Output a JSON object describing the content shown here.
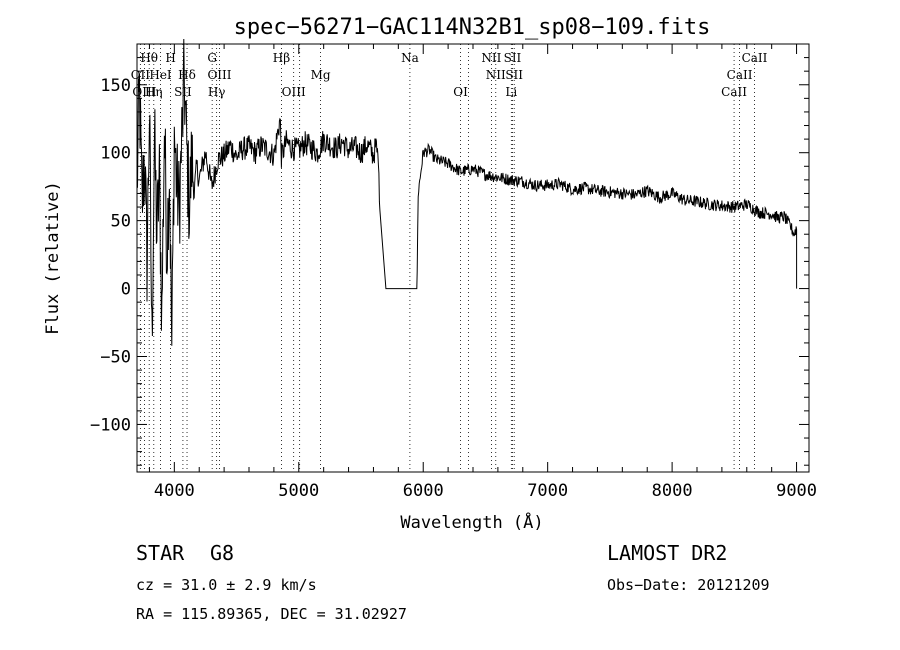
{
  "chart_data": {
    "type": "line",
    "title": "spec−56271−GAC114N32B1_sp08−109.fits",
    "xlabel": "Wavelength (Å)",
    "ylabel": "Flux (relative)",
    "xlim": [
      3700,
      9100
    ],
    "ylim": [
      -135,
      180
    ],
    "xticks": [
      {
        "value": 4000,
        "label": "4000"
      },
      {
        "value": 5000,
        "label": "5000"
      },
      {
        "value": 6000,
        "label": "6000"
      },
      {
        "value": 7000,
        "label": "7000"
      },
      {
        "value": 8000,
        "label": "8000"
      },
      {
        "value": 9000,
        "label": "9000"
      }
    ],
    "yticks": [
      {
        "value": -100,
        "label": "−100"
      },
      {
        "value": -50,
        "label": "−50"
      },
      {
        "value": 0,
        "label": "0"
      },
      {
        "value": 50,
        "label": "50"
      },
      {
        "value": 100,
        "label": "100"
      },
      {
        "value": 150,
        "label": "150"
      }
    ],
    "grid": false,
    "line_color": "#000000",
    "series": [
      {
        "x": [
          3700,
          3720,
          3740,
          3760,
          3780,
          3800,
          3820,
          3840,
          3860,
          3880,
          3900,
          3920,
          3940,
          3960,
          3980,
          4000,
          4020,
          4040,
          4060,
          4080,
          4100,
          4120,
          4140,
          4160,
          4180,
          4200,
          4250,
          4300,
          4350,
          4400,
          4450,
          4500,
          4550,
          4600,
          4650,
          4700,
          4750,
          4800,
          4850,
          4860,
          4900,
          4950,
          5000,
          5050,
          5100,
          5150,
          5200,
          5250,
          5300,
          5350,
          5400,
          5450,
          5500,
          5550,
          5600,
          5620,
          5640,
          5650,
          5700,
          5800,
          5900,
          5950,
          5960,
          6000,
          6050,
          6100,
          6200,
          6300,
          6400,
          6500,
          6600,
          6700,
          6800,
          6900,
          7000,
          7100,
          7200,
          7300,
          7400,
          7500,
          7600,
          7700,
          7800,
          7900,
          8000,
          8100,
          8200,
          8300,
          8400,
          8500,
          8600,
          8700,
          8800,
          8850,
          8900,
          8950,
          8980,
          9000
        ],
        "y": [
          75,
          145,
          60,
          100,
          20,
          130,
          -40,
          110,
          40,
          80,
          -20,
          120,
          30,
          90,
          -45,
          115,
          75,
          60,
          110,
          155,
          100,
          60,
          95,
          70,
          90,
          80,
          100,
          75,
          95,
          98,
          105,
          97,
          103,
          104,
          100,
          105,
          102,
          98,
          125,
          97,
          108,
          103,
          102,
          107,
          104,
          100,
          110,
          106,
          103,
          108,
          102,
          104,
          100,
          106,
          98,
          105,
          95,
          60,
          0,
          0,
          0,
          0,
          70,
          100,
          102,
          95,
          92,
          86,
          88,
          84,
          82,
          80,
          79,
          76,
          76,
          77,
          73,
          74,
          72,
          71,
          70,
          69,
          72,
          67,
          70,
          65,
          64,
          62,
          61,
          60,
          62,
          56,
          55,
          52,
          53,
          46,
          40,
          45
        ]
      }
    ],
    "annotations": [
      {
        "label": "Hθ",
        "x": 3798,
        "row": 1
      },
      {
        "label": "H",
        "x": 3970,
        "row": 1
      },
      {
        "label": "G",
        "x": 4304,
        "row": 1
      },
      {
        "label": "Hβ",
        "x": 4861,
        "row": 1
      },
      {
        "label": "Na",
        "x": 5893,
        "row": 1
      },
      {
        "label": "NII",
        "x": 6548,
        "row": 1
      },
      {
        "label": "SII",
        "x": 6717,
        "row": 1
      },
      {
        "label": "CaII",
        "x": 8662,
        "row": 1
      },
      {
        "label": "OII",
        "x": 3727,
        "row": 2
      },
      {
        "label": "HeI",
        "x": 3889,
        "row": 2
      },
      {
        "label": "Hδ",
        "x": 4102,
        "row": 2
      },
      {
        "label": "OIII",
        "x": 4363,
        "row": 2
      },
      {
        "label": "Mg",
        "x": 5175,
        "row": 2
      },
      {
        "label": "NII",
        "x": 6583,
        "row": 2
      },
      {
        "label": "SII",
        "x": 6731,
        "row": 2
      },
      {
        "label": "CaII",
        "x": 8542,
        "row": 2
      },
      {
        "label": "OIII",
        "x": 3760,
        "row": 3
      },
      {
        "label": "Hη",
        "x": 3835,
        "row": 3
      },
      {
        "label": "SII",
        "x": 4069,
        "row": 3
      },
      {
        "label": "Hγ",
        "x": 4340,
        "row": 3
      },
      {
        "label": "OIII",
        "x": 4959,
        "row": 3
      },
      {
        "label": "OI",
        "x": 6300,
        "row": 3
      },
      {
        "label": "Li",
        "x": 6708,
        "row": 3
      },
      {
        "label": "CaII",
        "x": 8498,
        "row": 3
      }
    ],
    "line_markers_x": [
      3727,
      3760,
      3798,
      3835,
      3889,
      3970,
      4069,
      4102,
      4304,
      4340,
      4363,
      4861,
      4959,
      5007,
      5175,
      5893,
      6300,
      6363,
      6548,
      6583,
      6708,
      6717,
      6731,
      8498,
      8542,
      8662
    ]
  },
  "info": {
    "object_class": "STAR",
    "subclass": "G8",
    "survey": "LAMOST DR2",
    "redshift": "cz = 31.0 ± 2.9 km/s",
    "obs_date": "Obs−Date: 20121209",
    "coords": "RA = 115.89365, DEC =  31.02927"
  }
}
